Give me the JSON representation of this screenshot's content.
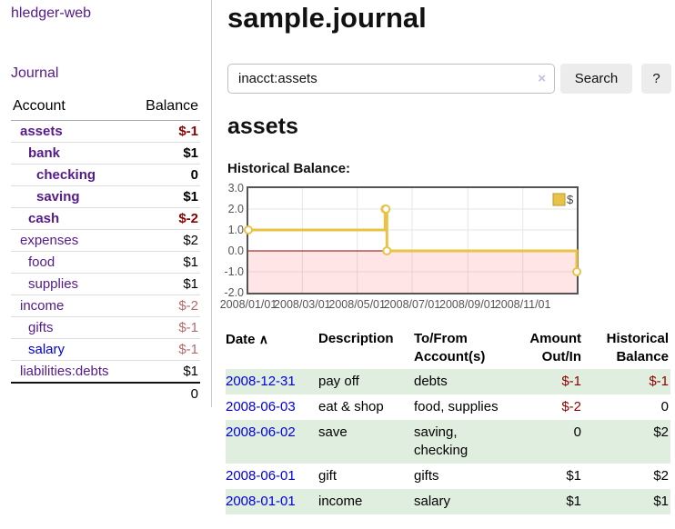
{
  "app": {
    "title": "hledger-web"
  },
  "sidebar": {
    "journal_link": "Journal",
    "accounts_table": {
      "headers": {
        "account": "Account",
        "balance": "Balance"
      },
      "rows": [
        {
          "name": "assets",
          "balance": "$-1",
          "indent": 0,
          "matched": true,
          "balance_style": "neg-strong",
          "link_style": "purple"
        },
        {
          "name": "bank",
          "balance": "$1",
          "indent": 1,
          "matched": true,
          "balance_style": "pos",
          "link_style": "purple"
        },
        {
          "name": "checking",
          "balance": "0",
          "indent": 2,
          "matched": true,
          "balance_style": "pos",
          "link_style": "purple"
        },
        {
          "name": "saving",
          "balance": "$1",
          "indent": 2,
          "matched": true,
          "balance_style": "pos",
          "link_style": "purple"
        },
        {
          "name": "cash",
          "balance": "$-2",
          "indent": 1,
          "matched": true,
          "balance_style": "neg-strong",
          "link_style": "purple"
        },
        {
          "name": "expenses",
          "balance": "$2",
          "indent": 0,
          "matched": false,
          "balance_style": "pos",
          "link_style": "purple"
        },
        {
          "name": "food",
          "balance": "$1",
          "indent": 1,
          "matched": false,
          "balance_style": "pos",
          "link_style": "purple"
        },
        {
          "name": "supplies",
          "balance": "$1",
          "indent": 1,
          "matched": false,
          "balance_style": "pos",
          "link_style": "purple"
        },
        {
          "name": "income",
          "balance": "$-2",
          "indent": 0,
          "matched": false,
          "balance_style": "neg-soft",
          "link_style": "purple"
        },
        {
          "name": "gifts",
          "balance": "$-1",
          "indent": 1,
          "matched": false,
          "balance_style": "neg-soft",
          "link_style": "purple"
        },
        {
          "name": "salary",
          "balance": "$-1",
          "indent": 1,
          "matched": false,
          "balance_style": "neg-soft",
          "link_style": "blue"
        },
        {
          "name": "liabilities:debts",
          "balance": "$1",
          "indent": 0,
          "matched": false,
          "balance_style": "pos",
          "link_style": "purple"
        }
      ],
      "total": "0"
    }
  },
  "header": {
    "title": "sample.journal"
  },
  "search": {
    "value": "inacct:assets",
    "clear_icon": "×",
    "search_button": "Search",
    "help_button": "?"
  },
  "account_page": {
    "heading": "assets",
    "chart_title": "Historical Balance:"
  },
  "chart_data": {
    "type": "line",
    "subtype": "step-with-markers",
    "title": "Historical Balance",
    "series": [
      {
        "name": "$",
        "color": "#e9c347",
        "marker_fill": "#ffffff",
        "points": [
          {
            "date": "2008-01-01",
            "value": 1
          },
          {
            "date": "2008-06-01",
            "value": 2
          },
          {
            "date": "2008-06-02",
            "value": 2
          },
          {
            "date": "2008-06-03",
            "value": 0
          },
          {
            "date": "2008-12-31",
            "value": -1
          }
        ]
      }
    ],
    "x_range": [
      "2008-01-01",
      "2008-12-31"
    ],
    "ylim": [
      -2,
      3
    ],
    "yticks": [
      3,
      2,
      1,
      0,
      -1,
      -2
    ],
    "ytick_labels": [
      "3.0",
      "2.0",
      "1.0",
      "0.0",
      "-1.0",
      "-2.0"
    ],
    "xticks": [
      "2008-01-01",
      "2008-03-01",
      "2008-05-01",
      "2008-07-01",
      "2008-09-01",
      "2008-11-01"
    ],
    "xtick_labels": [
      "2008/01/01",
      "2008/03/01",
      "2008/05/01",
      "2008/07/01",
      "2008/09/01",
      "2008/11/01"
    ],
    "grid": true,
    "gridline_color": "#e6e6e6",
    "legend_position": "top-right",
    "legend_label": "$",
    "negative_region_color": "rgba(255,0,0,0.10)",
    "zero_line_color": "#8b0000"
  },
  "transactions_table": {
    "headers": {
      "date": "Date",
      "sort_icon": "∧",
      "description": "Description",
      "accounts": "To/From Account(s)",
      "amount": "Amount Out/In",
      "balance": "Historical Balance"
    },
    "rows": [
      {
        "date": "2008-12-31",
        "description": "pay off",
        "accounts": "debts",
        "amount": "$-1",
        "amount_neg": true,
        "balance": "$-1",
        "balance_neg": true,
        "shaded": true
      },
      {
        "date": "2008-06-03",
        "description": "eat & shop",
        "accounts": "food, supplies",
        "amount": "$-2",
        "amount_neg": true,
        "balance": "0",
        "balance_neg": false,
        "shaded": false
      },
      {
        "date": "2008-06-02",
        "description": "save",
        "accounts": "saving, checking",
        "amount": "0",
        "amount_neg": false,
        "balance": "$2",
        "balance_neg": false,
        "shaded": true
      },
      {
        "date": "2008-06-01",
        "description": "gift",
        "accounts": "gifts",
        "amount": "$1",
        "amount_neg": false,
        "balance": "$2",
        "balance_neg": false,
        "shaded": false
      },
      {
        "date": "2008-01-01",
        "description": "income",
        "accounts": "salary",
        "amount": "$1",
        "amount_neg": false,
        "balance": "$1",
        "balance_neg": false,
        "shaded": true
      }
    ]
  },
  "colors": {
    "link_purple": "#551a8b",
    "link_blue": "#0000dd",
    "negative_strong": "#8b0000",
    "negative_soft": "#b26b6b",
    "row_shade": "#e0eedf",
    "chart_line": "#e9c347",
    "plot_border": "#545454"
  }
}
